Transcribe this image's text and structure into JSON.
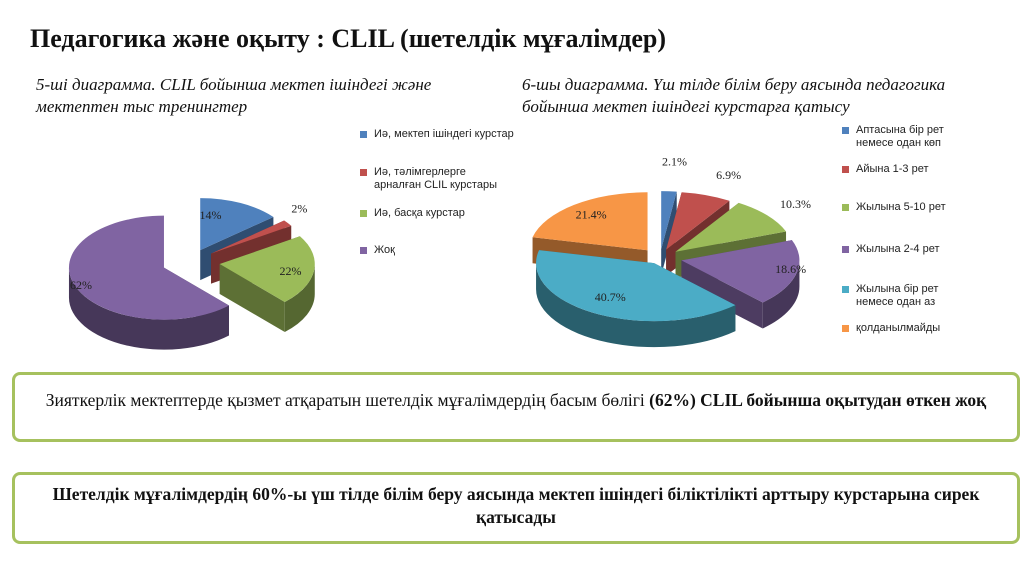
{
  "title": "Педагогика және оқыту : CLIL (шетелдік мұғалімдер)",
  "chart_data": [
    {
      "type": "pie",
      "title": "5-ші диаграмма. CLIL бойынша мектеп ішіндегі және мектептен тыс тренингтер",
      "labels": [
        "Иә, мектеп ішіндегі курстар",
        "Иә, тәлімгерлерге арналған CLIL курстары",
        "Иә, басқа курстар",
        "Жоқ"
      ],
      "values": [
        14,
        2,
        22,
        62
      ],
      "value_labels": [
        "14%",
        "2%",
        "22%",
        "62%"
      ],
      "colors": [
        "#4f81bd",
        "#c0504d",
        "#9bbb59",
        "#8064a2"
      ],
      "legend_position": "right"
    },
    {
      "type": "pie",
      "title": "6-шы диаграмма. Үш тілде білім беру аясында педагогика бойынша мектеп ішіндегі курстарға қатысу",
      "labels": [
        "Аптасына бір рет немесе одан көп",
        "Айына 1-3 рет",
        "Жылына 5-10 рет",
        "Жылына 2-4 рет",
        "Жылына бір рет немесе одан аз",
        "қолданылмайды"
      ],
      "values": [
        2.1,
        6.9,
        10.3,
        18.6,
        40.7,
        21.4
      ],
      "value_labels": [
        "2.1%",
        "6.9%",
        "10.3%",
        "18.6%",
        "40.7%",
        "21.4%"
      ],
      "colors": [
        "#4f81bd",
        "#c0504d",
        "#9bbb59",
        "#8064a2",
        "#4bacc6",
        "#f79646"
      ],
      "legend_position": "right"
    }
  ],
  "box1": {
    "text_before": "Зияткерлік мектептерде қызмет атқаратын шетелдік мұғалімдердің басым бөлігі ",
    "text_bold": "(62%) CLIL бойынша оқытудан өткен жоқ"
  },
  "box2": {
    "text": "Шетелдік мұғалімдердің 60%-ы үш тілде білім беру аясында мектеп ішіндегі біліктілікті арттыру курстарына сирек қатысады"
  }
}
